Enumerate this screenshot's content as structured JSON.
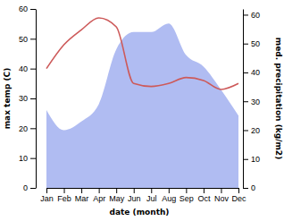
{
  "chart_data": {
    "type": "line",
    "x_label": "date (month)",
    "y_label": "max temp (C)",
    "y2_label": "med. precipitation (kg/m2)",
    "categories": [
      "Jan",
      "Feb",
      "Mar",
      "Apr",
      "May",
      "Jun",
      "Jul",
      "Aug",
      "Sep",
      "Oct",
      "Nov",
      "Dec"
    ],
    "series": [
      {
        "name": "med. precipitation",
        "type": "area",
        "axis": "y2",
        "color": "#b0bcf2",
        "values": [
          27,
          20,
          23,
          29,
          48,
          54,
          54,
          57,
          46,
          42,
          34,
          25
        ]
      },
      {
        "name": "max temp",
        "type": "line",
        "color": "#cd5a5a",
        "values": [
          40,
          48,
          53,
          57,
          54,
          35,
          34,
          35,
          37,
          36,
          33,
          35
        ]
      }
    ],
    "ylim": [
      0,
      60
    ],
    "yticks": [
      0,
      10,
      20,
      30,
      40,
      50,
      60
    ],
    "y2lim": [
      0,
      62
    ],
    "y2ticks": [
      0,
      10,
      20,
      30,
      40,
      50,
      60
    ],
    "grid": false
  }
}
